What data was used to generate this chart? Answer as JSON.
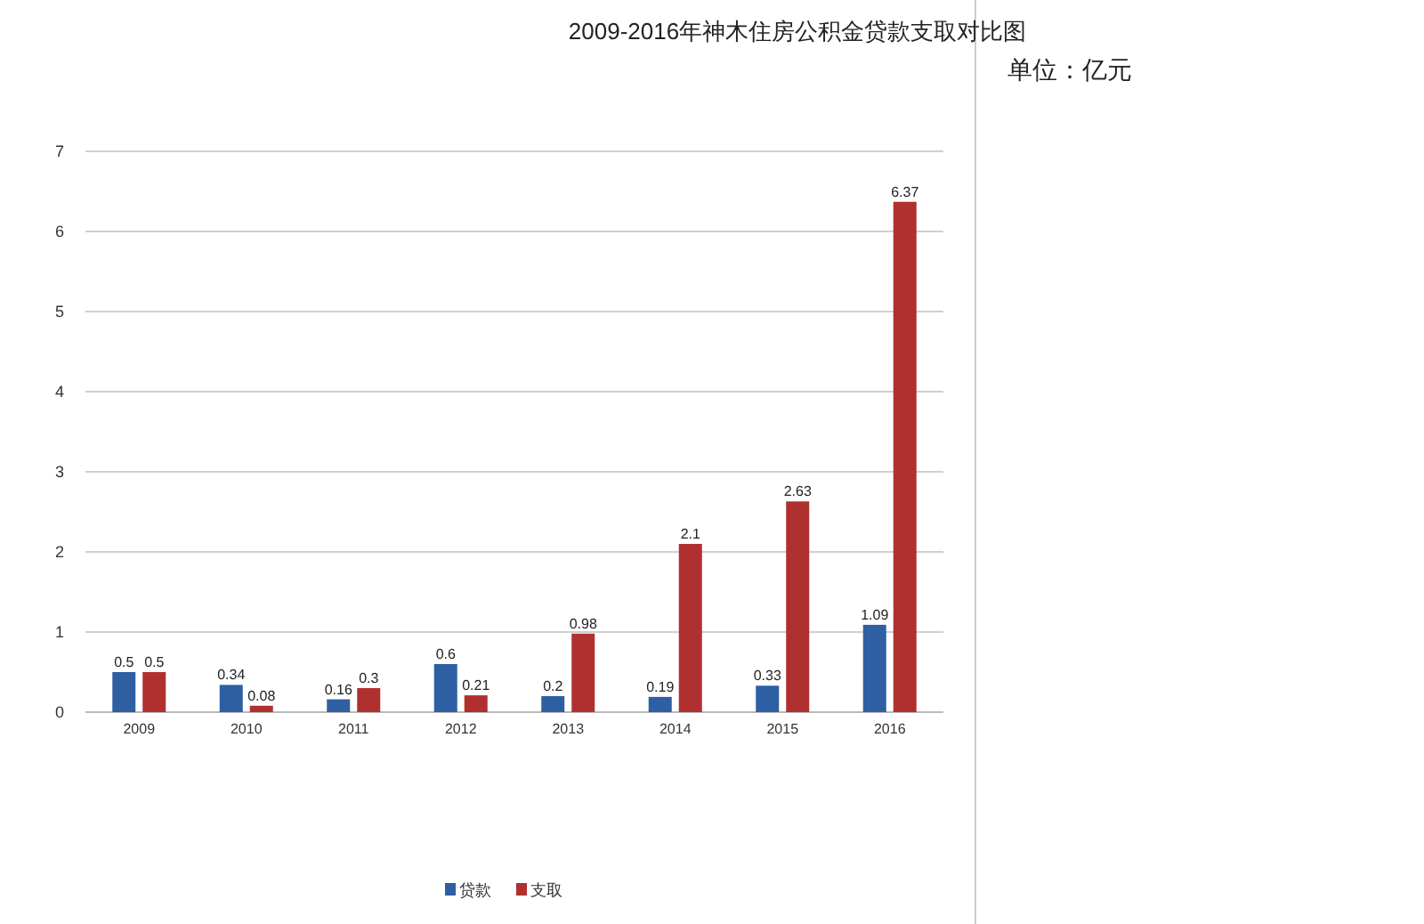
{
  "chart_data": {
    "type": "bar",
    "title": "2009-2016年神木住房公积金贷款支取对比图",
    "annotations": [
      "单位：亿元"
    ],
    "categories": [
      "2009",
      "2010",
      "2011",
      "2012",
      "2013",
      "2014",
      "2015",
      "2016"
    ],
    "series": [
      {
        "name": "贷款",
        "color": "#2e5fa3",
        "values": [
          0.5,
          0.34,
          0.16,
          0.6,
          0.2,
          0.19,
          0.33,
          1.09
        ]
      },
      {
        "name": "支取",
        "color": "#b03030",
        "values": [
          0.5,
          0.08,
          0.3,
          0.21,
          0.98,
          2.1,
          2.63,
          6.37
        ]
      }
    ],
    "ylim": [
      0,
      7
    ],
    "yticks": [
      0,
      1,
      2,
      3,
      4,
      5,
      6,
      7
    ],
    "grid": "y",
    "legend": "bottom",
    "data_labels": true
  }
}
